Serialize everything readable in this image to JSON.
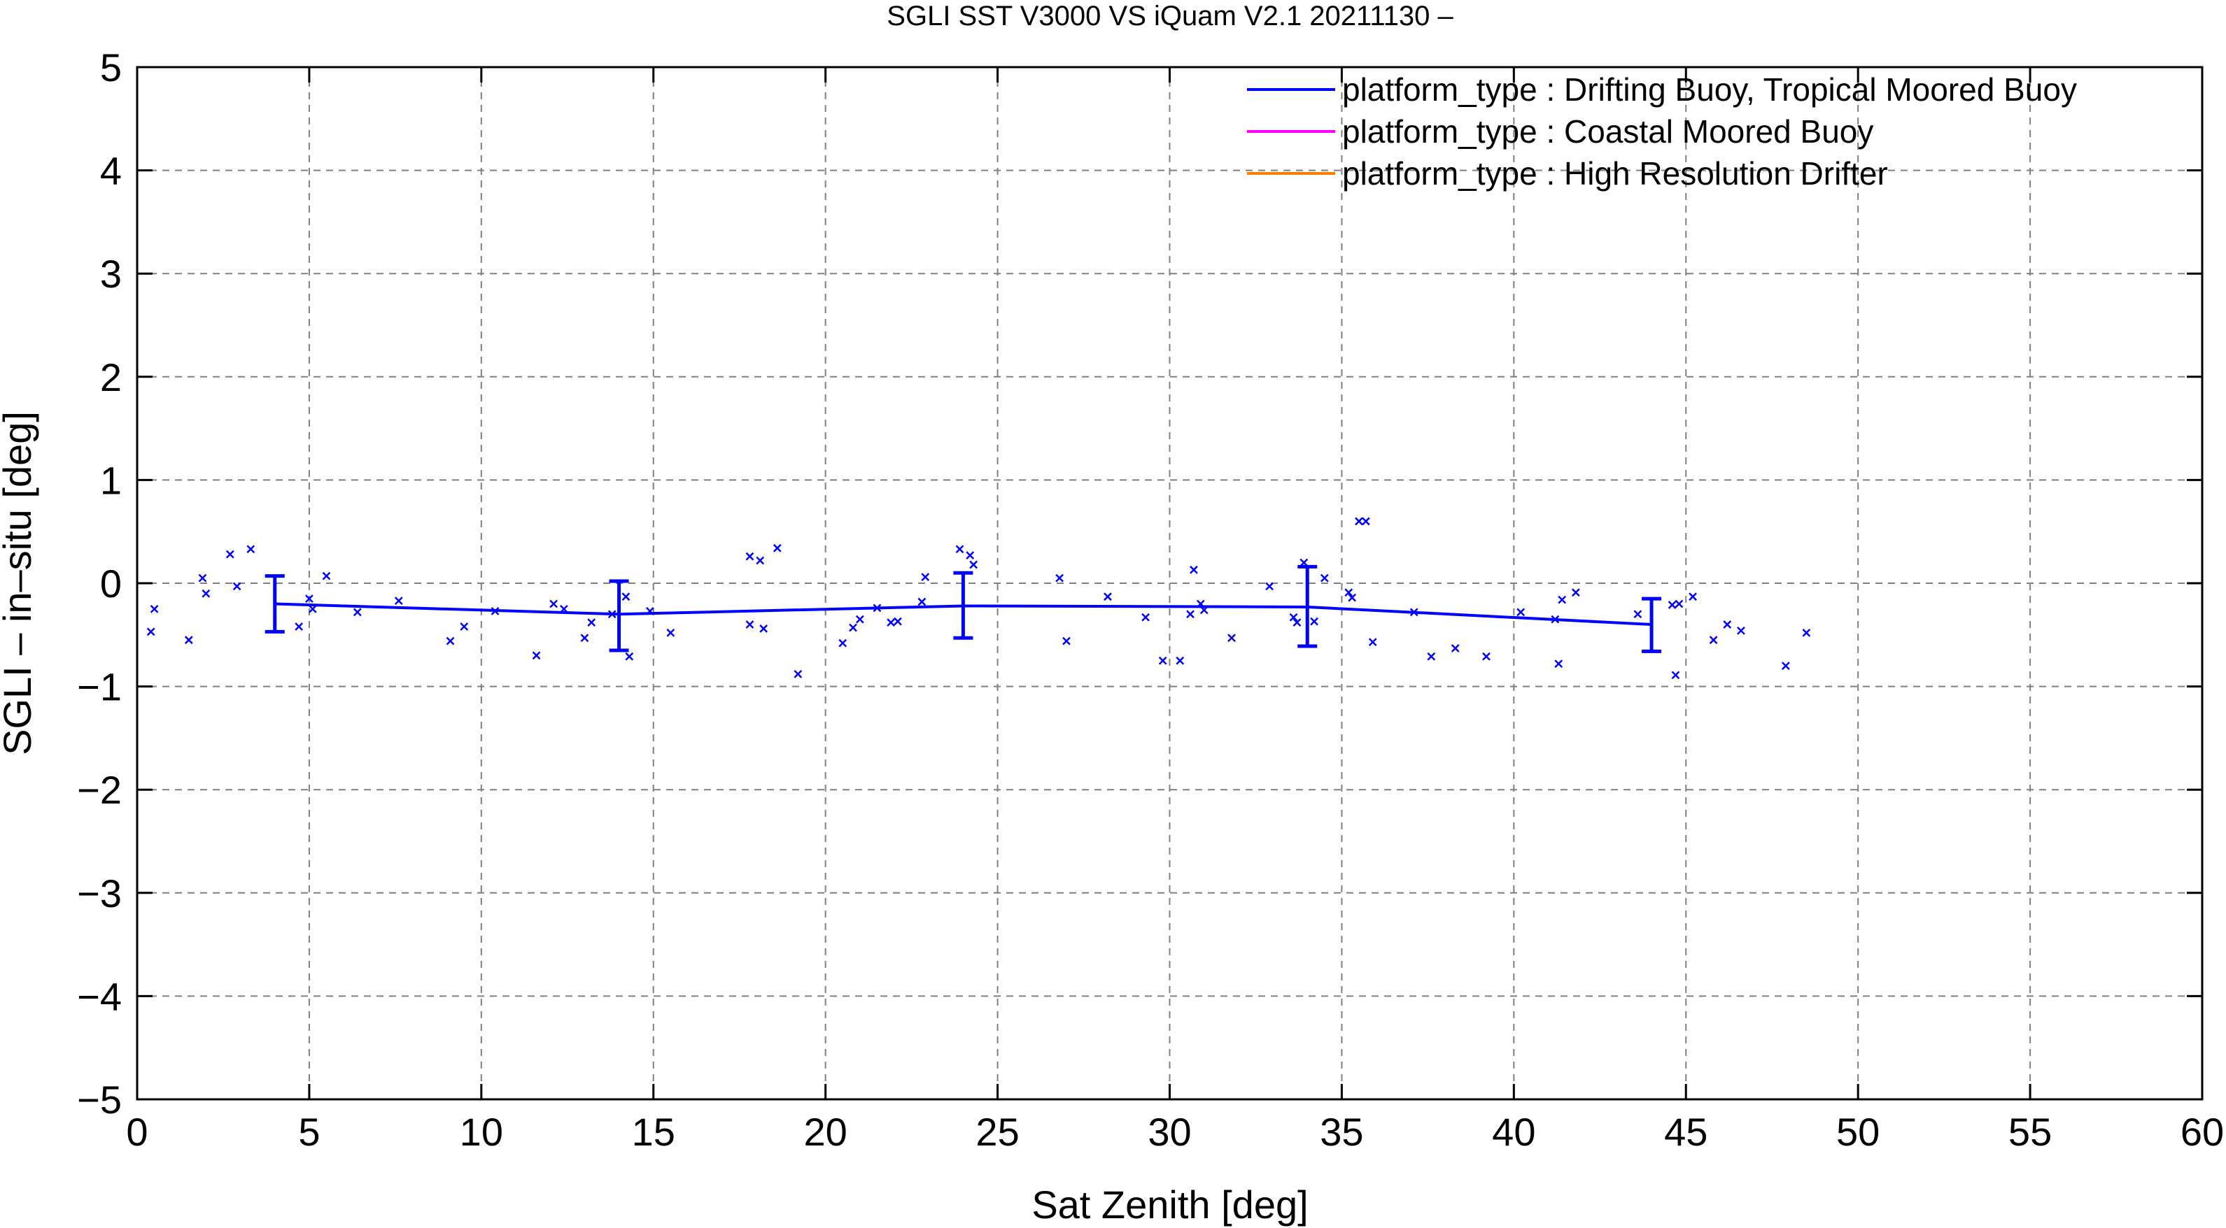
{
  "chart_data": {
    "type": "line",
    "title": "SGLI SST V3000 VS iQuam V2.1 20211130 –",
    "xlabel": "Sat Zenith [deg]",
    "ylabel": "SGLI – in–situ [deg]",
    "xlim": [
      0,
      60
    ],
    "ylim": [
      -5,
      5
    ],
    "xticks": [
      0,
      5,
      10,
      15,
      20,
      25,
      30,
      35,
      40,
      45,
      50,
      55,
      60
    ],
    "yticks": [
      -5,
      -4,
      -3,
      -2,
      -1,
      0,
      1,
      2,
      3,
      4,
      5
    ],
    "xtick_labels": [
      "0",
      "5",
      "10",
      "15",
      "20",
      "25",
      "30",
      "35",
      "40",
      "45",
      "50",
      "55",
      "60"
    ],
    "ytick_labels": [
      "−5",
      "−4",
      "−3",
      "−2",
      "−1",
      "0",
      "1",
      "2",
      "3",
      "4",
      "5"
    ],
    "grid": true,
    "legend_position": "top-right",
    "series": [
      {
        "name": "platform_type : Drifting Buoy, Tropical Moored Buoy",
        "color": "#0000ff",
        "line": {
          "x": [
            4,
            14,
            24,
            34,
            44
          ],
          "y": [
            -0.2,
            -0.3,
            -0.22,
            -0.23,
            -0.4
          ],
          "err_low": [
            -0.47,
            -0.65,
            -0.53,
            -0.61,
            -0.66
          ],
          "err_high": [
            0.07,
            0.02,
            0.1,
            0.16,
            -0.15
          ]
        },
        "points": [
          [
            0.4,
            -0.47
          ],
          [
            0.5,
            -0.25
          ],
          [
            1.5,
            -0.55
          ],
          [
            1.9,
            0.05
          ],
          [
            2.0,
            -0.1
          ],
          [
            2.7,
            0.28
          ],
          [
            2.9,
            -0.03
          ],
          [
            3.3,
            0.33
          ],
          [
            4.7,
            -0.42
          ],
          [
            5.0,
            -0.15
          ],
          [
            5.1,
            -0.25
          ],
          [
            5.5,
            0.07
          ],
          [
            6.4,
            -0.28
          ],
          [
            7.6,
            -0.17
          ],
          [
            9.1,
            -0.56
          ],
          [
            9.5,
            -0.42
          ],
          [
            10.4,
            -0.27
          ],
          [
            11.6,
            -0.7
          ],
          [
            12.1,
            -0.2
          ],
          [
            12.4,
            -0.25
          ],
          [
            13.0,
            -0.53
          ],
          [
            13.2,
            -0.38
          ],
          [
            13.8,
            -0.3
          ],
          [
            14.2,
            -0.13
          ],
          [
            14.3,
            -0.71
          ],
          [
            14.9,
            -0.27
          ],
          [
            15.5,
            -0.48
          ],
          [
            17.8,
            -0.4
          ],
          [
            17.8,
            0.26
          ],
          [
            18.1,
            0.22
          ],
          [
            18.2,
            -0.44
          ],
          [
            18.6,
            0.34
          ],
          [
            19.2,
            -0.88
          ],
          [
            20.5,
            -0.58
          ],
          [
            20.8,
            -0.43
          ],
          [
            21.0,
            -0.35
          ],
          [
            21.5,
            -0.24
          ],
          [
            21.9,
            -0.38
          ],
          [
            22.1,
            -0.37
          ],
          [
            22.8,
            -0.18
          ],
          [
            22.9,
            0.06
          ],
          [
            23.9,
            0.33
          ],
          [
            24.2,
            0.27
          ],
          [
            24.3,
            0.18
          ],
          [
            26.8,
            0.05
          ],
          [
            27.0,
            -0.56
          ],
          [
            28.2,
            -0.13
          ],
          [
            29.3,
            -0.33
          ],
          [
            29.8,
            -0.75
          ],
          [
            30.3,
            -0.75
          ],
          [
            30.6,
            -0.3
          ],
          [
            30.7,
            0.13
          ],
          [
            30.9,
            -0.2
          ],
          [
            31.0,
            -0.26
          ],
          [
            31.8,
            -0.53
          ],
          [
            32.9,
            -0.03
          ],
          [
            33.6,
            -0.33
          ],
          [
            33.7,
            -0.38
          ],
          [
            33.9,
            0.2
          ],
          [
            34.2,
            -0.37
          ],
          [
            34.5,
            0.05
          ],
          [
            35.2,
            -0.09
          ],
          [
            35.3,
            -0.14
          ],
          [
            35.5,
            0.6
          ],
          [
            35.7,
            0.6
          ],
          [
            35.9,
            -0.57
          ],
          [
            37.1,
            -0.28
          ],
          [
            37.6,
            -0.71
          ],
          [
            38.3,
            -0.63
          ],
          [
            39.2,
            -0.71
          ],
          [
            40.2,
            -0.28
          ],
          [
            41.2,
            -0.35
          ],
          [
            41.3,
            -0.78
          ],
          [
            41.4,
            -0.16
          ],
          [
            41.8,
            -0.09
          ],
          [
            43.6,
            -0.3
          ],
          [
            44.6,
            -0.21
          ],
          [
            44.7,
            -0.89
          ],
          [
            44.8,
            -0.2
          ],
          [
            45.2,
            -0.13
          ],
          [
            45.8,
            -0.55
          ],
          [
            46.2,
            -0.4
          ],
          [
            46.6,
            -0.46
          ],
          [
            47.9,
            -0.8
          ],
          [
            48.5,
            -0.48
          ]
        ]
      },
      {
        "name": "platform_type : Coastal Moored Buoy",
        "color": "#ff00ff",
        "line": {
          "x": [],
          "y": []
        },
        "points": []
      },
      {
        "name": "platform_type : High Resolution Drifter",
        "color": "#ff8000",
        "line": {
          "x": [],
          "y": []
        },
        "points": []
      }
    ]
  }
}
